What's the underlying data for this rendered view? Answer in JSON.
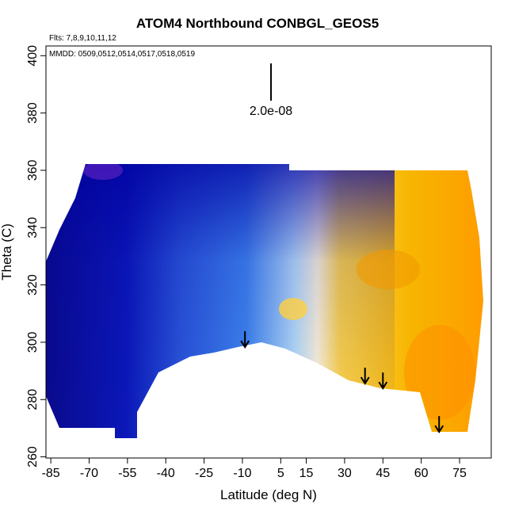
{
  "chart_data": {
    "type": "curtain",
    "title": "ATOM4 Northbound CONBGL_GEOS5",
    "flights_note": "Flts: 7,8,9,10,11,12",
    "dates_note": "MMDD: 0509,0512,0514,0517,0518,0519",
    "x_label": "Latitude (deg N)",
    "y_label": "Theta (C)",
    "xlim": [
      -86.9,
      87.4
    ],
    "ylim": [
      259.6,
      403.4
    ],
    "xticks": [
      -85,
      -70,
      -55,
      -40,
      -25,
      -10,
      5,
      15,
      30,
      45,
      60,
      75
    ],
    "yticks": [
      260,
      280,
      300,
      320,
      340,
      360,
      380,
      400
    ],
    "scale_bar": {
      "label": "2.0e-08",
      "x": 1.2,
      "y0": 384.3,
      "y1": 397.3
    },
    "arrows": [
      {
        "x": -9,
        "y": 298.3
      },
      {
        "x": 38,
        "y": 285.6
      },
      {
        "x": 45,
        "y": 283.9
      },
      {
        "x": 67,
        "y": 268.7
      }
    ]
  }
}
